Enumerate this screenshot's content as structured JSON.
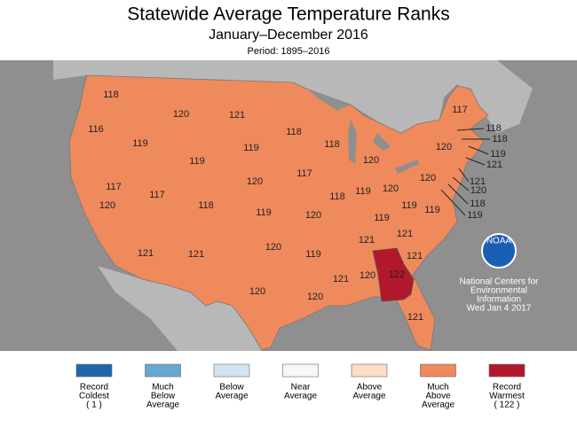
{
  "title": "Statewide Average Temperature Ranks",
  "subtitle": "January–December 2016",
  "period": "Period: 1895–2016",
  "ranks": [
    118,
    116,
    119,
    120,
    121,
    118,
    119,
    119,
    120,
    117,
    117,
    118,
    119,
    120,
    121,
    121,
    120,
    120,
    117,
    118,
    120,
    118,
    119,
    120,
    120,
    120,
    117,
    119,
    119,
    119,
    120,
    119,
    121,
    121,
    121,
    122,
    121,
    120,
    120,
    121,
    118,
    118,
    119,
    121,
    121,
    120,
    118,
    119
  ],
  "credit": [
    "National Centers for",
    "Environmental",
    "Information",
    "Wed Jan  4 2017"
  ],
  "logo": "NOAA",
  "legend": [
    {
      "lines": [
        "Record",
        "Coldest",
        "( 1 )"
      ],
      "color": "#2166ac"
    },
    {
      "lines": [
        "Much",
        "Below",
        "Average"
      ],
      "color": "#67a9cf"
    },
    {
      "lines": [
        "Below",
        "Average"
      ],
      "color": "#d1e5f0"
    },
    {
      "lines": [
        "Near",
        "Average"
      ],
      "color": "#f7f7f7"
    },
    {
      "lines": [
        "Above",
        "Average"
      ],
      "color": "#fddbc7"
    },
    {
      "lines": [
        "Much",
        "Above",
        "Average"
      ],
      "color": "#ef8a5d"
    },
    {
      "lines": [
        "Record",
        "Warmest",
        "( 122 )"
      ],
      "color": "#b2182b"
    }
  ]
}
